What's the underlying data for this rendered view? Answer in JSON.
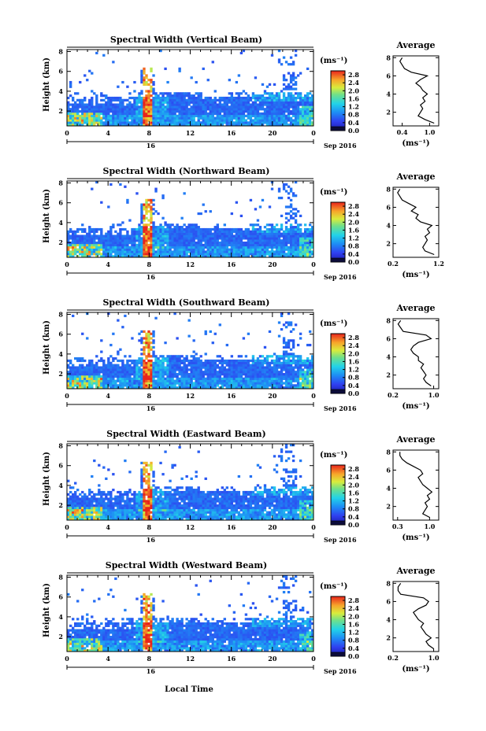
{
  "figure": {
    "x_axis_label": "Local Time",
    "day_label": "16",
    "date_label": "Sep 2016",
    "y_axis_label": "Height (km)",
    "colorbar_unit": "(ms⁻¹)",
    "average_title": "Average",
    "average_unit": "(ms⁻¹)"
  },
  "chart_data": [
    {
      "type": "heatmap",
      "title": "Spectral Width (Vertical Beam)",
      "ylabel": "Height (km)",
      "xlabel": "Local Time",
      "x_ticks": [
        "0",
        "4",
        "8",
        "12",
        "16",
        "20",
        "0"
      ],
      "xlim": [
        0,
        24
      ],
      "y_ticks": [
        "2",
        "4",
        "6",
        "8"
      ],
      "ylim": [
        0.5,
        8.2
      ],
      "colorbar": {
        "ticks": [
          "0.0",
          "0.4",
          "0.8",
          "1.2",
          "1.6",
          "2.0",
          "2.4",
          "2.8"
        ],
        "range": [
          0,
          3.0
        ]
      },
      "average_profile": {
        "xlim": [
          0.2,
          1.2
        ],
        "x_ticks": [
          "0.4",
          "1.0"
        ],
        "y_ticks": [
          "2",
          "4",
          "6",
          "8"
        ],
        "height_km": [
          0.8,
          1.2,
          1.6,
          2.0,
          2.4,
          2.8,
          3.2,
          3.6,
          4.0,
          4.4,
          4.8,
          5.2,
          5.6,
          6.0,
          6.4,
          6.8,
          7.2,
          7.6,
          8.0
        ],
        "values": [
          1.1,
          0.9,
          0.75,
          0.8,
          0.85,
          0.8,
          0.9,
          0.85,
          0.95,
          0.85,
          0.8,
          0.7,
          0.8,
          0.95,
          0.6,
          0.45,
          0.4,
          0.35,
          0.4
        ]
      }
    },
    {
      "type": "heatmap",
      "title": "Spectral Width (Northward Beam)",
      "ylabel": "Height (km)",
      "xlabel": "Local Time",
      "x_ticks": [
        "0",
        "4",
        "8",
        "12",
        "16",
        "20",
        "0"
      ],
      "xlim": [
        0,
        24
      ],
      "y_ticks": [
        "2",
        "4",
        "6",
        "8"
      ],
      "ylim": [
        0.5,
        8.2
      ],
      "colorbar": {
        "ticks": [
          "0.0",
          "0.4",
          "0.8",
          "1.2",
          "1.6",
          "2.0",
          "2.4",
          "2.8"
        ],
        "range": [
          0,
          3.0
        ]
      },
      "average_profile": {
        "xlim": [
          0.2,
          1.2
        ],
        "x_ticks": [
          "0.2",
          "1.2"
        ],
        "y_ticks": [
          "2",
          "4",
          "6",
          "8"
        ],
        "height_km": [
          0.8,
          1.2,
          1.6,
          2.0,
          2.4,
          2.8,
          3.2,
          3.6,
          4.0,
          4.4,
          4.8,
          5.2,
          5.6,
          6.0,
          6.4,
          6.8,
          7.2,
          7.6,
          8.0
        ],
        "values": [
          1.1,
          0.9,
          0.85,
          0.9,
          0.95,
          0.9,
          1.0,
          0.95,
          1.05,
          0.8,
          0.7,
          0.75,
          0.6,
          0.7,
          0.55,
          0.4,
          0.35,
          0.3,
          0.35
        ]
      }
    },
    {
      "type": "heatmap",
      "title": "Spectral Width (Southward Beam)",
      "ylabel": "Height (km)",
      "xlabel": "Local Time",
      "x_ticks": [
        "0",
        "4",
        "8",
        "12",
        "16",
        "20",
        "0"
      ],
      "xlim": [
        0,
        24
      ],
      "y_ticks": [
        "2",
        "4",
        "6",
        "8"
      ],
      "ylim": [
        0.5,
        8.2
      ],
      "colorbar": {
        "ticks": [
          "0.0",
          "0.4",
          "0.8",
          "1.2",
          "1.6",
          "2.0",
          "2.4",
          "2.8"
        ],
        "range": [
          0,
          3.0
        ]
      },
      "average_profile": {
        "xlim": [
          0.2,
          1.1
        ],
        "x_ticks": [
          "0.2",
          "1.0"
        ],
        "y_ticks": [
          "2",
          "4",
          "6",
          "8"
        ],
        "height_km": [
          0.8,
          1.2,
          1.6,
          2.0,
          2.4,
          2.8,
          3.2,
          3.6,
          4.0,
          4.4,
          4.8,
          5.2,
          5.6,
          6.0,
          6.4,
          6.8,
          7.2,
          7.6,
          8.0
        ],
        "values": [
          0.95,
          0.85,
          0.8,
          0.85,
          0.8,
          0.75,
          0.8,
          0.7,
          0.7,
          0.6,
          0.55,
          0.6,
          0.7,
          0.95,
          0.85,
          0.4,
          0.35,
          0.3,
          0.35
        ]
      }
    },
    {
      "type": "heatmap",
      "title": "Spectral Width (Eastward Beam)",
      "ylabel": "Height (km)",
      "xlabel": "Local Time",
      "x_ticks": [
        "0",
        "4",
        "8",
        "12",
        "16",
        "20",
        "0"
      ],
      "xlim": [
        0,
        24
      ],
      "y_ticks": [
        "2",
        "4",
        "6",
        "8"
      ],
      "ylim": [
        0.5,
        8.2
      ],
      "colorbar": {
        "ticks": [
          "0.0",
          "0.4",
          "0.8",
          "1.2",
          "1.6",
          "2.0",
          "2.4",
          "2.8"
        ],
        "range": [
          0,
          3.0
        ]
      },
      "average_profile": {
        "xlim": [
          0.2,
          1.2
        ],
        "x_ticks": [
          "0.3",
          "1.0"
        ],
        "y_ticks": [
          "2",
          "4",
          "6",
          "8"
        ],
        "height_km": [
          0.8,
          1.2,
          1.6,
          2.0,
          2.4,
          2.8,
          3.2,
          3.6,
          4.0,
          4.4,
          4.8,
          5.2,
          5.6,
          6.0,
          6.4,
          6.8,
          7.2,
          7.6,
          8.0
        ],
        "values": [
          1.0,
          0.85,
          0.9,
          0.95,
          0.9,
          1.0,
          0.95,
          1.05,
          0.95,
          0.85,
          0.8,
          0.75,
          0.85,
          0.8,
          0.65,
          0.5,
          0.4,
          0.35,
          0.35
        ]
      }
    },
    {
      "type": "heatmap",
      "title": "Spectral Width (Westward Beam)",
      "ylabel": "Height (km)",
      "xlabel": "Local Time",
      "x_ticks": [
        "0",
        "4",
        "8",
        "12",
        "16",
        "20",
        "0"
      ],
      "xlim": [
        0,
        24
      ],
      "y_ticks": [
        "2",
        "4",
        "6",
        "8"
      ],
      "ylim": [
        0.5,
        8.2
      ],
      "colorbar": {
        "ticks": [
          "0.0",
          "0.4",
          "0.8",
          "1.2",
          "1.6",
          "2.0",
          "2.4",
          "2.8"
        ],
        "range": [
          0,
          3.0
        ]
      },
      "average_profile": {
        "xlim": [
          0.2,
          1.1
        ],
        "x_ticks": [
          "0.2",
          "1.0"
        ],
        "y_ticks": [
          "2",
          "4",
          "6",
          "8"
        ],
        "height_km": [
          0.8,
          1.2,
          1.6,
          2.0,
          2.4,
          2.8,
          3.2,
          3.6,
          4.0,
          4.4,
          4.8,
          5.2,
          5.6,
          6.0,
          6.4,
          6.8,
          7.2,
          7.6,
          8.0
        ],
        "values": [
          1.0,
          0.9,
          0.85,
          0.95,
          0.85,
          0.8,
          0.75,
          0.8,
          0.7,
          0.65,
          0.6,
          0.7,
          0.85,
          0.9,
          0.8,
          0.35,
          0.3,
          0.3,
          0.35
        ]
      }
    }
  ]
}
